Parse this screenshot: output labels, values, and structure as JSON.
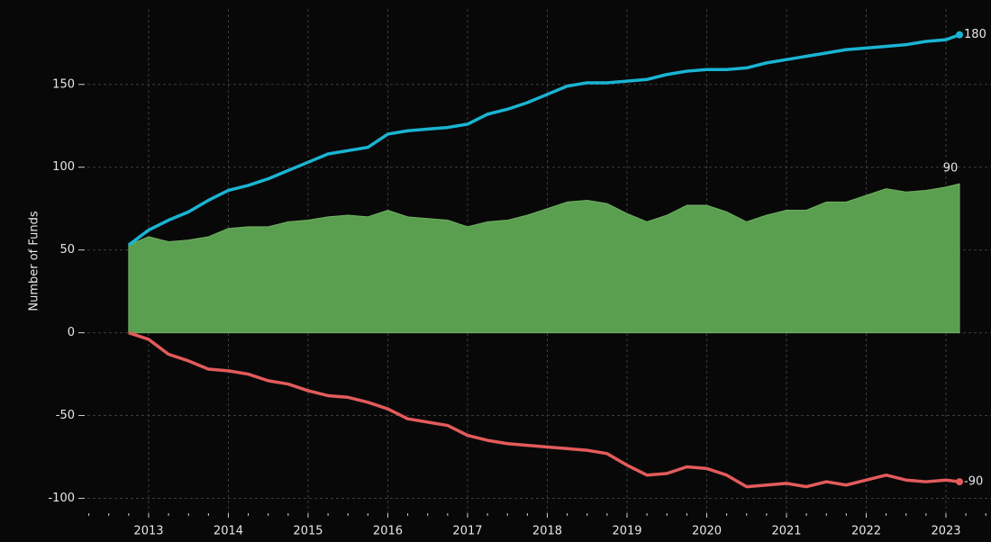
{
  "chart_data": {
    "type": "line",
    "ylabel": "Number of Funds",
    "x": [
      2012.75,
      2013.0,
      2013.25,
      2013.5,
      2013.75,
      2014.0,
      2014.25,
      2014.5,
      2014.75,
      2015.0,
      2015.25,
      2015.5,
      2015.75,
      2016.0,
      2016.25,
      2016.5,
      2016.75,
      2017.0,
      2017.25,
      2017.5,
      2017.75,
      2018.0,
      2018.25,
      2018.5,
      2018.75,
      2019.0,
      2019.25,
      2019.5,
      2019.75,
      2020.0,
      2020.25,
      2020.5,
      2020.75,
      2021.0,
      2021.25,
      2021.5,
      2021.75,
      2022.0,
      2022.25,
      2022.5,
      2022.75,
      2023.0,
      2023.17
    ],
    "series": [
      {
        "color": "#1ab4d3",
        "values": [
          53,
          62,
          68,
          73,
          80,
          86,
          89,
          93,
          98,
          103,
          108,
          110,
          112,
          120,
          122,
          123,
          124,
          126,
          132,
          135,
          139,
          144,
          149,
          151,
          151,
          152,
          153,
          156,
          158,
          159,
          159,
          160,
          163,
          165,
          167,
          169,
          171,
          172,
          173,
          174,
          176,
          177,
          180
        ]
      },
      {
        "color": "#e35b5b",
        "values": [
          0,
          -4,
          -13,
          -17,
          -22,
          -23,
          -25,
          -29,
          -31,
          -35,
          -38,
          -39,
          -42,
          -46,
          -52,
          -54,
          -56,
          -62,
          -65,
          -67,
          -68,
          -69,
          -70,
          -71,
          -73,
          -80,
          -86,
          -85,
          -81,
          -82,
          -86,
          -93,
          -92,
          -91,
          -93,
          -90,
          -92,
          -89,
          -86,
          -89,
          -90,
          -89,
          -90
        ]
      },
      {
        "color": "#5a9f4f",
        "area": true,
        "values": [
          53,
          58,
          55,
          56,
          58,
          63,
          64,
          64,
          67,
          68,
          70,
          71,
          70,
          74,
          70,
          69,
          68,
          64,
          67,
          68,
          71,
          75,
          79,
          80,
          78,
          72,
          67,
          71,
          77,
          77,
          73,
          67,
          71,
          74,
          74,
          79,
          79,
          83,
          87,
          85,
          86,
          88,
          90
        ]
      }
    ],
    "xlim": [
      2012.232,
      2023.565
    ],
    "ylim": [
      -109,
      201
    ],
    "xticks": [
      2013,
      2014,
      2015,
      2016,
      2017,
      2018,
      2019,
      2020,
      2021,
      2022,
      2023
    ],
    "xminorticks": [
      2012.25,
      2012.5,
      2012.75,
      2013.25,
      2013.5,
      2013.75,
      2014.25,
      2014.5,
      2014.75,
      2015.25,
      2015.5,
      2015.75,
      2016.25,
      2016.5,
      2016.75,
      2017.25,
      2017.5,
      2017.75,
      2018.25,
      2018.5,
      2018.75,
      2019.25,
      2019.5,
      2019.75,
      2020.25,
      2020.5,
      2020.75,
      2021.25,
      2021.5,
      2021.75,
      2022.25,
      2022.5,
      2022.75,
      2023.25,
      2023.5
    ],
    "yticks": [
      -100,
      -50,
      0,
      50,
      100,
      150
    ],
    "grid": true
  }
}
